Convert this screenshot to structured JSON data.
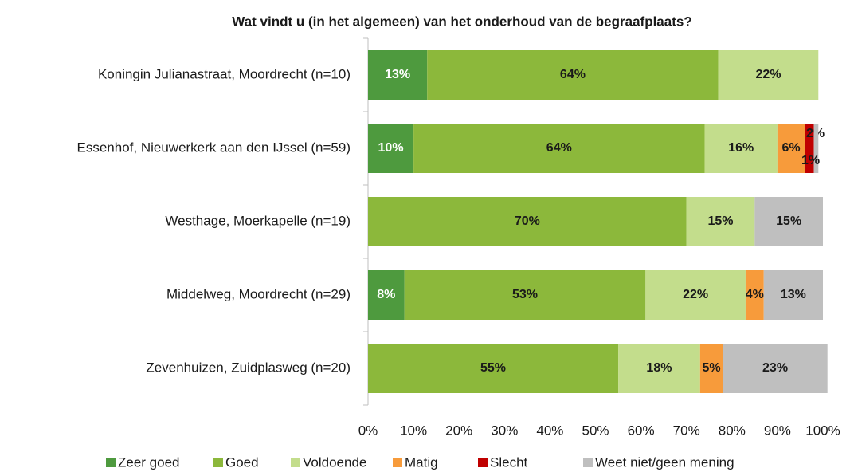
{
  "chart_data": {
    "type": "stacked_barh",
    "title": "Wat vindt u (in het algemeen) van het onderhoud van de begraafplaats?",
    "categories": [
      "Koningin Julianastraat, Moordrecht (n=10)",
      "Essenhof, Nieuwerkerk aan den IJssel (n=59)",
      "Westhage, Moerkapelle (n=19)",
      "Middelweg, Moordrecht (n=29)",
      "Zevenhuizen, Zuidplasweg (n=20)"
    ],
    "series": [
      {
        "name": "Zeer goed",
        "color": "#4e9a3e",
        "label_color": "#ffffff",
        "values": [
          13,
          10,
          null,
          8,
          null
        ],
        "value_labels": [
          "13%",
          "10%",
          null,
          "8%",
          null
        ]
      },
      {
        "name": "Goed",
        "color": "#8cb83b",
        "label_color": "#1a1a1a",
        "values": [
          64,
          64,
          70,
          53,
          55
        ],
        "value_labels": [
          "64%",
          "64%",
          "70%",
          "53%",
          "55%"
        ]
      },
      {
        "name": "Voldoende",
        "color": "#c3dd8c",
        "label_color": "#1a1a1a",
        "values": [
          22,
          16,
          15,
          22,
          18
        ],
        "value_labels": [
          "22%",
          "16%",
          "15%",
          "22%",
          "18%"
        ]
      },
      {
        "name": "Matig",
        "color": "#f79b3b",
        "label_color": "#1a1a1a",
        "values": [
          null,
          6,
          null,
          4,
          5
        ],
        "value_labels": [
          null,
          "6%",
          null,
          "4%",
          "5%"
        ]
      },
      {
        "name": "Slecht",
        "color": "#c00000",
        "label_color": "#1a1a1a",
        "values": [
          null,
          2,
          null,
          null,
          null
        ],
        "value_labels": [
          null,
          "2%",
          null,
          null,
          null
        ]
      },
      {
        "name": "Weet niet/geen mening",
        "color": "#bfbfbf",
        "label_color": "#1a1a1a",
        "values": [
          null,
          1,
          15,
          13,
          23
        ],
        "value_labels": [
          null,
          "1%",
          "15%",
          "13%",
          "23%"
        ]
      }
    ],
    "xlim": [
      0,
      100
    ],
    "xticks": [
      {
        "value": 0,
        "label": "0%"
      },
      {
        "value": 10,
        "label": "10%"
      },
      {
        "value": 20,
        "label": "20%"
      },
      {
        "value": 30,
        "label": "30%"
      },
      {
        "value": 40,
        "label": "40%"
      },
      {
        "value": 50,
        "label": "50%"
      },
      {
        "value": 60,
        "label": "60%"
      },
      {
        "value": 70,
        "label": "70%"
      },
      {
        "value": 80,
        "label": "80%"
      },
      {
        "value": 90,
        "label": "90%"
      },
      {
        "value": 100,
        "label": "100%"
      }
    ],
    "legend": "bottom"
  }
}
